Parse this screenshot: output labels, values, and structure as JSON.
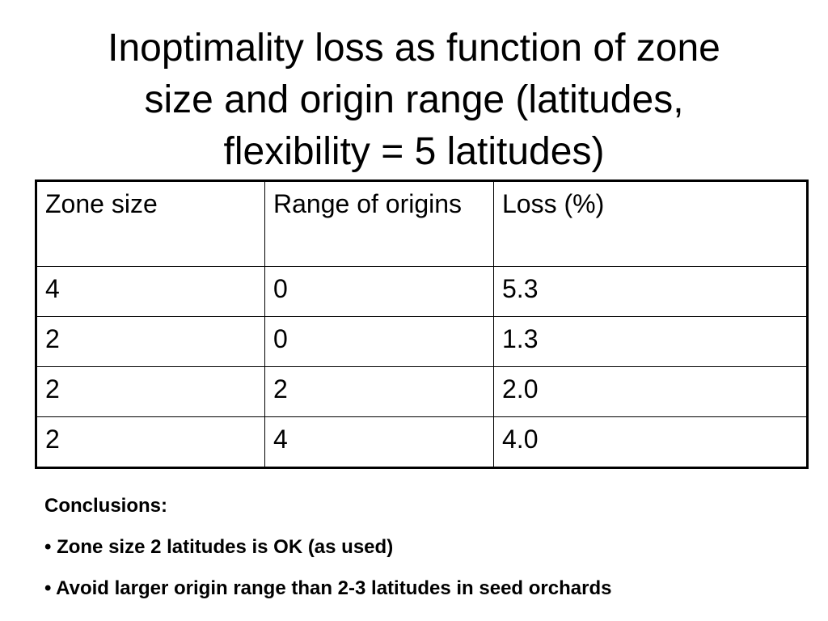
{
  "title": {
    "line1": "Inoptimality loss as function of zone",
    "line2": "size and origin range (latitudes,",
    "line3": "flexibility = 5 latitudes)"
  },
  "table": {
    "headers": [
      "Zone size",
      "Range of origins",
      "Loss (%)"
    ],
    "rows": [
      [
        "4",
        "0",
        "5.3"
      ],
      [
        "2",
        "0",
        "1.3"
      ],
      [
        "2",
        "2",
        "2.0"
      ],
      [
        "2",
        "4",
        "4.0"
      ]
    ]
  },
  "conclusions": {
    "heading": "Conclusions:",
    "bullets": [
      "• Zone size 2 latitudes is OK (as used)",
      "• Avoid larger origin range than 2-3 latitudes in seed orchards"
    ]
  }
}
